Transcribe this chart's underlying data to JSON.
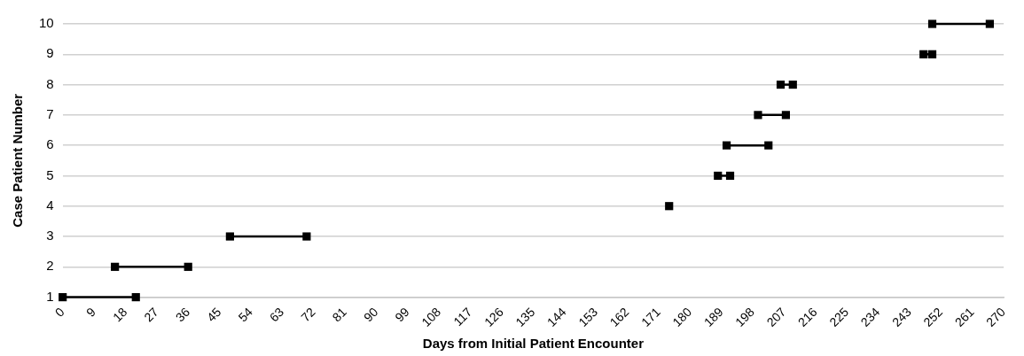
{
  "chart_data": {
    "type": "line",
    "xlabel": "Days from Initial Patient Encounter",
    "ylabel": "Case Patient Number",
    "xlim": [
      0,
      270
    ],
    "xticks": [
      0,
      9,
      18,
      27,
      36,
      45,
      54,
      63,
      72,
      81,
      90,
      99,
      108,
      117,
      126,
      135,
      144,
      153,
      162,
      171,
      180,
      189,
      198,
      207,
      216,
      225,
      234,
      243,
      252,
      261,
      270
    ],
    "ylim": [
      1,
      10
    ],
    "yticks": [
      1,
      2,
      3,
      4,
      5,
      6,
      7,
      8,
      9,
      10
    ],
    "grid": "y",
    "legend": false,
    "marker": "square",
    "line_style": "solid",
    "series": [
      {
        "color": "#000000",
        "x": [
          0,
          21
        ],
        "values": [
          1,
          1
        ]
      },
      {
        "color": "#000000",
        "x": [
          15,
          36
        ],
        "values": [
          2,
          2
        ]
      },
      {
        "color": "#000000",
        "x": [
          48,
          70
        ],
        "values": [
          3,
          3
        ]
      },
      {
        "color": "#000000",
        "x": [
          174
        ],
        "values": [
          4
        ]
      },
      {
        "color": "#000000",
        "x": [
          188,
          191.5
        ],
        "values": [
          5,
          5
        ]
      },
      {
        "color": "#000000",
        "x": [
          190.5,
          202.5
        ],
        "values": [
          6,
          6
        ]
      },
      {
        "color": "#000000",
        "x": [
          199.5,
          207.5
        ],
        "values": [
          7,
          7
        ]
      },
      {
        "color": "#000000",
        "x": [
          206,
          209.5
        ],
        "values": [
          8,
          8
        ]
      },
      {
        "color": "#000000",
        "x": [
          247,
          249.5
        ],
        "values": [
          9,
          9
        ]
      },
      {
        "color": "#000000",
        "x": [
          249.5,
          266
        ],
        "values": [
          10,
          10
        ]
      }
    ]
  }
}
